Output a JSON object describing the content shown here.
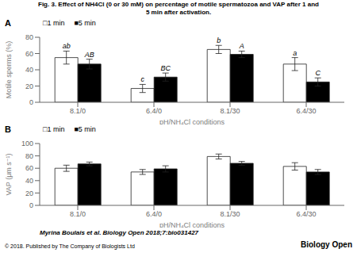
{
  "title": "Fig. 3. Effect of NH4Cl (0 or 30 mM) on percentage of motile spermatozoa and VAP after 1 and\n5 min after activation.",
  "annotations": [
    "Myrina Boulais et al. Biology Open 2018;7:bio031427",
    "© 2018. Published by The Company of Biologists Ltd",
    "Biology Open"
  ],
  "chart_data": [
    {
      "type": "bar",
      "annotations": [
        "A"
      ],
      "categories": [
        "8.1/0",
        "6.4/0",
        "8.1/30",
        "6.4/30"
      ],
      "xlabel": "pH/NH₄Cl conditions",
      "ylabel": "Motile sperms (%)",
      "ylim": [
        0,
        80
      ],
      "yticks": [
        0,
        20,
        40,
        60,
        80
      ],
      "grid": false,
      "legend": "upper left",
      "series": [
        {
          "name": "□1 min",
          "color": "white",
          "values": [
            55,
            17,
            65,
            47
          ],
          "errors": [
            8,
            5,
            5,
            8
          ],
          "annotations": [
            "ab",
            "c",
            "b",
            "a"
          ]
        },
        {
          "name": "■5 min",
          "color": "black",
          "values": [
            47,
            31,
            59,
            25
          ],
          "errors": [
            6,
            5,
            4,
            5
          ],
          "annotations": [
            "AB",
            "BC",
            "A",
            "C"
          ]
        }
      ]
    },
    {
      "type": "bar",
      "annotations": [
        "B"
      ],
      "categories": [
        "8.1/0",
        "6.4/0",
        "8.1/30",
        "6.4/30"
      ],
      "xlabel": "pH/NH₄Cl conditions",
      "ylabel": "VAP (μm s⁻¹)",
      "ylim": [
        0,
        100
      ],
      "yticks": [
        0,
        20,
        40,
        60,
        80,
        100
      ],
      "grid": false,
      "legend": "upper left",
      "series": [
        {
          "name": "□1 min",
          "color": "white",
          "values": [
            60,
            54,
            79,
            63
          ],
          "errors": [
            5,
            4,
            4,
            6
          ]
        },
        {
          "name": "■5 min",
          "color": "black",
          "values": [
            67,
            59,
            68,
            54
          ],
          "errors": [
            3,
            5,
            3,
            4
          ]
        }
      ]
    }
  ]
}
